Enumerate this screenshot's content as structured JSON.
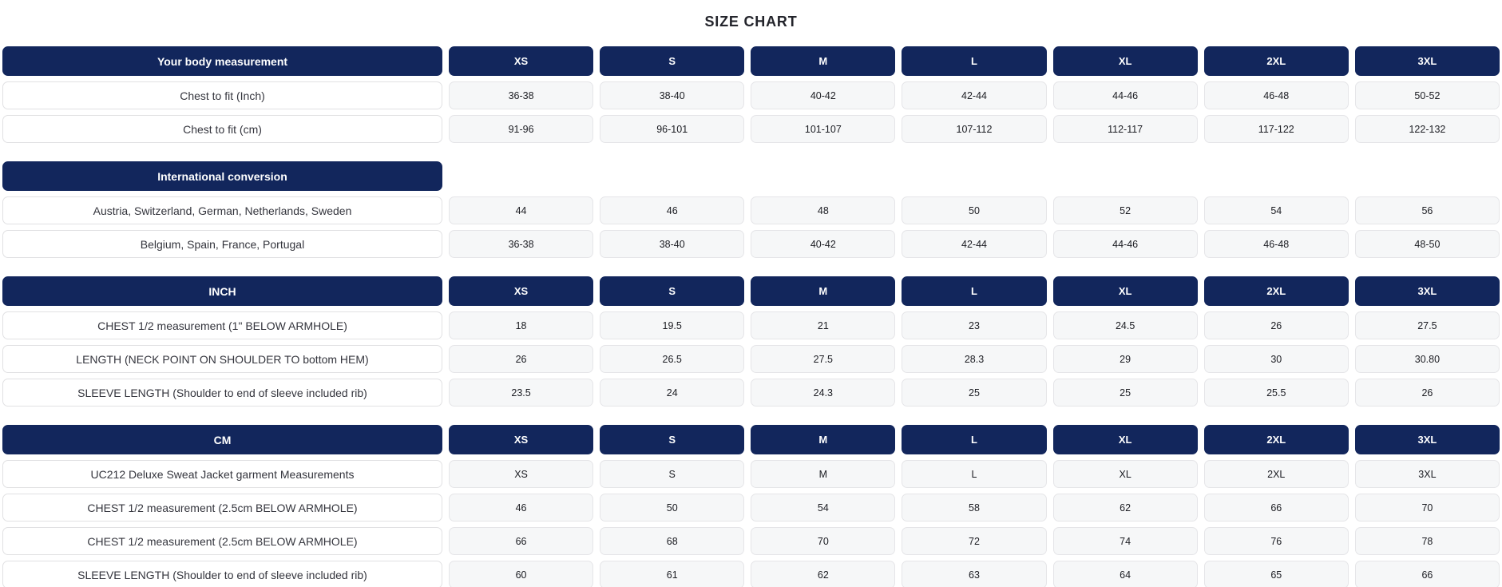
{
  "title": "SIZE CHART",
  "colors": {
    "header_bg": "#12265c",
    "header_text": "#ffffff",
    "cell_bg": "#f6f7f8",
    "cell_border": "#e5e5e8",
    "label_border": "#e1e1e3",
    "title_color": "#23242b"
  },
  "chart_data": [
    {
      "type": "table",
      "header": "Your body measurement",
      "show_size_columns": true,
      "columns": [
        "XS",
        "S",
        "M",
        "L",
        "XL",
        "2XL",
        "3XL"
      ],
      "rows": [
        {
          "label": "Chest to fit (Inch)",
          "values": [
            "36-38",
            "38-40",
            "40-42",
            "42-44",
            "44-46",
            "46-48",
            "50-52"
          ]
        },
        {
          "label": "Chest to fit (cm)",
          "values": [
            "91-96",
            "96-101",
            "101-107",
            "107-112",
            "112-117",
            "117-122",
            "122-132"
          ]
        }
      ]
    },
    {
      "type": "table",
      "header": "International conversion",
      "show_size_columns": false,
      "columns": [
        "XS",
        "S",
        "M",
        "L",
        "XL",
        "2XL",
        "3XL"
      ],
      "rows": [
        {
          "label": "Austria, Switzerland, German, Netherlands, Sweden",
          "values": [
            "44",
            "46",
            "48",
            "50",
            "52",
            "54",
            "56"
          ]
        },
        {
          "label": "Belgium, Spain, France, Portugal",
          "values": [
            "36-38",
            "38-40",
            "40-42",
            "42-44",
            "44-46",
            "46-48",
            "48-50"
          ]
        }
      ]
    },
    {
      "type": "table",
      "header": "INCH",
      "show_size_columns": true,
      "columns": [
        "XS",
        "S",
        "M",
        "L",
        "XL",
        "2XL",
        "3XL"
      ],
      "rows": [
        {
          "label": "CHEST 1/2 measurement (1\" BELOW ARMHOLE)",
          "values": [
            "18",
            "19.5",
            "21",
            "23",
            "24.5",
            "26",
            "27.5"
          ]
        },
        {
          "label": "LENGTH (NECK POINT ON SHOULDER TO bottom HEM)",
          "values": [
            "26",
            "26.5",
            "27.5",
            "28.3",
            "29",
            "30",
            "30.80"
          ]
        },
        {
          "label": "SLEEVE LENGTH (Shoulder to end of sleeve included rib)",
          "values": [
            "23.5",
            "24",
            "24.3",
            "25",
            "25",
            "25.5",
            "26"
          ]
        }
      ]
    },
    {
      "type": "table",
      "header": "CM",
      "show_size_columns": true,
      "columns": [
        "XS",
        "S",
        "M",
        "L",
        "XL",
        "2XL",
        "3XL"
      ],
      "rows": [
        {
          "label": "UC212 Deluxe Sweat Jacket garment Measurements",
          "values": [
            "XS",
            "S",
            "M",
            "L",
            "XL",
            "2XL",
            "3XL"
          ]
        },
        {
          "label": "CHEST 1/2 measurement (2.5cm BELOW ARMHOLE)",
          "values": [
            "46",
            "50",
            "54",
            "58",
            "62",
            "66",
            "70"
          ]
        },
        {
          "label": "CHEST 1/2 measurement (2.5cm BELOW ARMHOLE)",
          "values": [
            "66",
            "68",
            "70",
            "72",
            "74",
            "76",
            "78"
          ]
        },
        {
          "label": "SLEEVE LENGTH (Shoulder to end of sleeve included rib)",
          "values": [
            "60",
            "61",
            "62",
            "63",
            "64",
            "65",
            "66"
          ]
        }
      ]
    }
  ]
}
